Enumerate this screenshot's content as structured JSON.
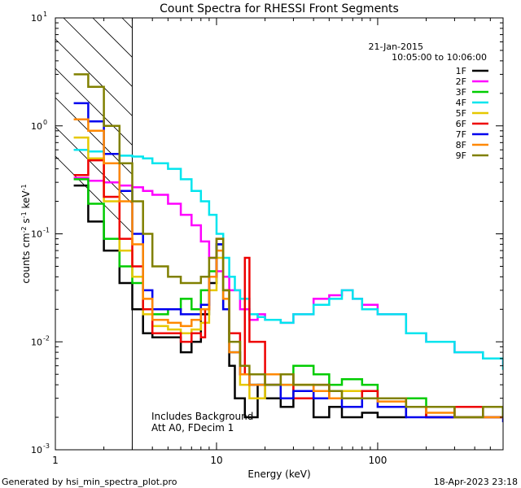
{
  "chart_data": {
    "type": "line",
    "title": "Count Spectra for RHESSI Front Segments",
    "xlabel": "Energy (keV)",
    "ylabel": "counts cm^-2 s^-1 keV^-1",
    "xscale": "log",
    "yscale": "log",
    "xlim": [
      1,
      600
    ],
    "ylim": [
      0.001,
      10
    ],
    "x_ticks": [
      {
        "value": 1,
        "label": "1"
      },
      {
        "value": 10,
        "label": "10"
      },
      {
        "value": 100,
        "label": "100"
      }
    ],
    "y_ticks": [
      {
        "value": 0.001,
        "base": "10",
        "exp": "-3"
      },
      {
        "value": 0.01,
        "base": "10",
        "exp": "-2"
      },
      {
        "value": 0.1,
        "base": "10",
        "exp": "-1"
      },
      {
        "value": 1,
        "base": "10",
        "exp": "0"
      },
      {
        "value": 10,
        "base": "10",
        "exp": "1"
      }
    ],
    "shaded_region": {
      "x_from": 1,
      "x_to": 3,
      "pattern": "diagonal hatch"
    },
    "date": "21-Jan-2015",
    "time_range": "10:05:00 to 10:06:00",
    "annotations": [
      "Includes Background",
      "Att A0, FDecim 1"
    ],
    "footer_left": "Generated by hsi_min_spectra_plot.pro",
    "footer_right": "18-Apr-2023 23:18",
    "series": [
      {
        "name": "1F",
        "color": "#000000",
        "points": [
          [
            1.3,
            0.28
          ],
          [
            1.6,
            0.13
          ],
          [
            2.0,
            0.07
          ],
          [
            2.5,
            0.035
          ],
          [
            3.0,
            0.02
          ],
          [
            3.5,
            0.012
          ],
          [
            4.0,
            0.011
          ],
          [
            5.0,
            0.011
          ],
          [
            6.0,
            0.008
          ],
          [
            7.0,
            0.01
          ],
          [
            8.0,
            0.018
          ],
          [
            9.0,
            0.035
          ],
          [
            10.0,
            0.08
          ],
          [
            11.0,
            0.02
          ],
          [
            12.0,
            0.006
          ],
          [
            13.0,
            0.003
          ],
          [
            15.0,
            0.002
          ],
          [
            18.0,
            0.004
          ],
          [
            20.0,
            0.003
          ],
          [
            25.0,
            0.0025
          ],
          [
            30.0,
            0.003
          ],
          [
            40.0,
            0.002
          ],
          [
            50.0,
            0.0025
          ],
          [
            60.0,
            0.002
          ],
          [
            80.0,
            0.0022
          ],
          [
            100.0,
            0.002
          ],
          [
            150.0,
            0.0025
          ],
          [
            200.0,
            0.002
          ],
          [
            300.0,
            0.002
          ],
          [
            450.0,
            0.0025
          ],
          [
            600.0,
            0.002
          ]
        ]
      },
      {
        "name": "2F",
        "color": "#ff00ff",
        "points": [
          [
            1.3,
            0.33
          ],
          [
            1.6,
            0.31
          ],
          [
            2.0,
            0.3
          ],
          [
            2.5,
            0.28
          ],
          [
            3.0,
            0.27
          ],
          [
            3.5,
            0.25
          ],
          [
            4.0,
            0.23
          ],
          [
            5.0,
            0.19
          ],
          [
            6.0,
            0.15
          ],
          [
            7.0,
            0.12
          ],
          [
            8.0,
            0.085
          ],
          [
            9.0,
            0.06
          ],
          [
            10.0,
            0.045
          ],
          [
            11.0,
            0.04
          ],
          [
            12.0,
            0.03
          ],
          [
            14.0,
            0.02
          ],
          [
            16.0,
            0.016
          ],
          [
            18.0,
            0.018
          ],
          [
            20.0,
            0.016
          ],
          [
            25.0,
            0.015
          ],
          [
            30.0,
            0.018
          ],
          [
            40.0,
            0.025
          ],
          [
            50.0,
            0.027
          ],
          [
            60.0,
            0.03
          ],
          [
            70.0,
            0.025
          ],
          [
            80.0,
            0.022
          ],
          [
            100.0,
            0.018
          ],
          [
            150.0,
            0.012
          ],
          [
            200.0,
            0.01
          ],
          [
            300.0,
            0.008
          ],
          [
            450.0,
            0.007
          ],
          [
            600.0,
            0.006
          ]
        ]
      },
      {
        "name": "3F",
        "color": "#00cc00",
        "points": [
          [
            1.3,
            0.32
          ],
          [
            1.6,
            0.19
          ],
          [
            2.0,
            0.09
          ],
          [
            2.5,
            0.05
          ],
          [
            3.0,
            0.035
          ],
          [
            3.5,
            0.02
          ],
          [
            4.0,
            0.018
          ],
          [
            5.0,
            0.02
          ],
          [
            6.0,
            0.025
          ],
          [
            7.0,
            0.02
          ],
          [
            8.0,
            0.03
          ],
          [
            9.0,
            0.045
          ],
          [
            10.0,
            0.08
          ],
          [
            11.0,
            0.02
          ],
          [
            12.0,
            0.008
          ],
          [
            14.0,
            0.005
          ],
          [
            16.0,
            0.004
          ],
          [
            20.0,
            0.005
          ],
          [
            25.0,
            0.004
          ],
          [
            30.0,
            0.006
          ],
          [
            40.0,
            0.005
          ],
          [
            50.0,
            0.004
          ],
          [
            60.0,
            0.0045
          ],
          [
            80.0,
            0.004
          ],
          [
            100.0,
            0.003
          ],
          [
            150.0,
            0.003
          ],
          [
            200.0,
            0.0025
          ],
          [
            300.0,
            0.0025
          ],
          [
            450.0,
            0.0025
          ],
          [
            600.0,
            0.002
          ]
        ]
      },
      {
        "name": "4F",
        "color": "#00e5ee",
        "points": [
          [
            1.3,
            0.6
          ],
          [
            1.6,
            0.58
          ],
          [
            2.0,
            0.55
          ],
          [
            2.5,
            0.53
          ],
          [
            3.0,
            0.52
          ],
          [
            3.5,
            0.5
          ],
          [
            4.0,
            0.45
          ],
          [
            5.0,
            0.4
          ],
          [
            6.0,
            0.32
          ],
          [
            7.0,
            0.25
          ],
          [
            8.0,
            0.2
          ],
          [
            9.0,
            0.15
          ],
          [
            10.0,
            0.1
          ],
          [
            11.0,
            0.06
          ],
          [
            12.0,
            0.04
          ],
          [
            13.0,
            0.03
          ],
          [
            14.0,
            0.025
          ],
          [
            16.0,
            0.018
          ],
          [
            18.0,
            0.017
          ],
          [
            20.0,
            0.016
          ],
          [
            25.0,
            0.015
          ],
          [
            30.0,
            0.018
          ],
          [
            40.0,
            0.022
          ],
          [
            50.0,
            0.025
          ],
          [
            60.0,
            0.03
          ],
          [
            70.0,
            0.025
          ],
          [
            80.0,
            0.02
          ],
          [
            100.0,
            0.018
          ],
          [
            150.0,
            0.012
          ],
          [
            200.0,
            0.01
          ],
          [
            300.0,
            0.008
          ],
          [
            450.0,
            0.007
          ],
          [
            600.0,
            0.0055
          ]
        ]
      },
      {
        "name": "5F",
        "color": "#e6c800",
        "points": [
          [
            1.3,
            0.78
          ],
          [
            1.6,
            0.5
          ],
          [
            2.0,
            0.2
          ],
          [
            2.5,
            0.07
          ],
          [
            3.0,
            0.04
          ],
          [
            3.5,
            0.018
          ],
          [
            4.0,
            0.014
          ],
          [
            5.0,
            0.013
          ],
          [
            6.0,
            0.012
          ],
          [
            7.0,
            0.013
          ],
          [
            8.0,
            0.015
          ],
          [
            9.0,
            0.03
          ],
          [
            10.0,
            0.06
          ],
          [
            11.0,
            0.03
          ],
          [
            12.0,
            0.01
          ],
          [
            14.0,
            0.004
          ],
          [
            16.0,
            0.003
          ],
          [
            20.0,
            0.004
          ],
          [
            25.0,
            0.003
          ],
          [
            30.0,
            0.004
          ],
          [
            40.0,
            0.003
          ],
          [
            50.0,
            0.003
          ],
          [
            60.0,
            0.0035
          ],
          [
            80.0,
            0.003
          ],
          [
            100.0,
            0.003
          ],
          [
            150.0,
            0.0025
          ],
          [
            200.0,
            0.0025
          ],
          [
            300.0,
            0.002
          ],
          [
            450.0,
            0.002
          ],
          [
            600.0,
            0.002
          ]
        ]
      },
      {
        "name": "6F",
        "color": "#ee0000",
        "points": [
          [
            1.3,
            0.35
          ],
          [
            1.6,
            0.48
          ],
          [
            2.0,
            0.22
          ],
          [
            2.5,
            0.09
          ],
          [
            3.0,
            0.05
          ],
          [
            3.5,
            0.02
          ],
          [
            4.0,
            0.012
          ],
          [
            5.0,
            0.012
          ],
          [
            6.0,
            0.01
          ],
          [
            7.0,
            0.012
          ],
          [
            8.0,
            0.011
          ],
          [
            8.5,
            0.02
          ],
          [
            9.0,
            0.04
          ],
          [
            10.0,
            0.09
          ],
          [
            11.0,
            0.03
          ],
          [
            12.0,
            0.012
          ],
          [
            14.0,
            0.005
          ],
          [
            15.0,
            0.06
          ],
          [
            16.0,
            0.01
          ],
          [
            20.0,
            0.004
          ],
          [
            25.0,
            0.005
          ],
          [
            30.0,
            0.003
          ],
          [
            40.0,
            0.004
          ],
          [
            50.0,
            0.003
          ],
          [
            60.0,
            0.003
          ],
          [
            80.0,
            0.0035
          ],
          [
            100.0,
            0.003
          ],
          [
            150.0,
            0.0025
          ],
          [
            200.0,
            0.002
          ],
          [
            300.0,
            0.0025
          ],
          [
            450.0,
            0.002
          ],
          [
            600.0,
            0.002
          ]
        ]
      },
      {
        "name": "7F",
        "color": "#0000ee",
        "points": [
          [
            1.3,
            1.62
          ],
          [
            1.6,
            1.1
          ],
          [
            2.0,
            0.55
          ],
          [
            2.5,
            0.25
          ],
          [
            3.0,
            0.1
          ],
          [
            3.5,
            0.03
          ],
          [
            4.0,
            0.02
          ],
          [
            5.0,
            0.02
          ],
          [
            6.0,
            0.018
          ],
          [
            7.0,
            0.018
          ],
          [
            8.0,
            0.022
          ],
          [
            9.0,
            0.04
          ],
          [
            10.0,
            0.08
          ],
          [
            11.0,
            0.02
          ],
          [
            12.0,
            0.008
          ],
          [
            14.0,
            0.005
          ],
          [
            16.0,
            0.004
          ],
          [
            20.0,
            0.004
          ],
          [
            25.0,
            0.003
          ],
          [
            30.0,
            0.0035
          ],
          [
            40.0,
            0.003
          ],
          [
            50.0,
            0.003
          ],
          [
            60.0,
            0.0025
          ],
          [
            80.0,
            0.003
          ],
          [
            100.0,
            0.0025
          ],
          [
            150.0,
            0.002
          ],
          [
            200.0,
            0.002
          ],
          [
            300.0,
            0.002
          ],
          [
            450.0,
            0.002
          ],
          [
            600.0,
            0.0018
          ]
        ]
      },
      {
        "name": "8F",
        "color": "#ff8800",
        "points": [
          [
            1.3,
            1.15
          ],
          [
            1.6,
            0.9
          ],
          [
            2.0,
            0.45
          ],
          [
            2.5,
            0.2
          ],
          [
            3.0,
            0.08
          ],
          [
            3.5,
            0.025
          ],
          [
            4.0,
            0.016
          ],
          [
            5.0,
            0.015
          ],
          [
            6.0,
            0.014
          ],
          [
            7.0,
            0.016
          ],
          [
            8.0,
            0.02
          ],
          [
            9.0,
            0.04
          ],
          [
            10.0,
            0.07
          ],
          [
            11.0,
            0.025
          ],
          [
            12.0,
            0.008
          ],
          [
            14.0,
            0.005
          ],
          [
            16.0,
            0.004
          ],
          [
            20.0,
            0.005
          ],
          [
            25.0,
            0.004
          ],
          [
            30.0,
            0.004
          ],
          [
            40.0,
            0.0035
          ],
          [
            50.0,
            0.003
          ],
          [
            60.0,
            0.003
          ],
          [
            80.0,
            0.003
          ],
          [
            100.0,
            0.0028
          ],
          [
            150.0,
            0.0025
          ],
          [
            200.0,
            0.0022
          ],
          [
            300.0,
            0.002
          ],
          [
            450.0,
            0.002
          ],
          [
            600.0,
            0.002
          ]
        ]
      },
      {
        "name": "9F",
        "color": "#808000",
        "points": [
          [
            1.3,
            3.0
          ],
          [
            1.6,
            2.3
          ],
          [
            2.0,
            1.0
          ],
          [
            2.5,
            0.45
          ],
          [
            3.0,
            0.2
          ],
          [
            3.5,
            0.1
          ],
          [
            4.0,
            0.05
          ],
          [
            5.0,
            0.04
          ],
          [
            6.0,
            0.035
          ],
          [
            7.0,
            0.035
          ],
          [
            8.0,
            0.04
          ],
          [
            9.0,
            0.06
          ],
          [
            10.0,
            0.09
          ],
          [
            11.0,
            0.03
          ],
          [
            12.0,
            0.01
          ],
          [
            14.0,
            0.006
          ],
          [
            16.0,
            0.005
          ],
          [
            20.0,
            0.004
          ],
          [
            25.0,
            0.005
          ],
          [
            30.0,
            0.004
          ],
          [
            40.0,
            0.004
          ],
          [
            50.0,
            0.0035
          ],
          [
            60.0,
            0.003
          ],
          [
            80.0,
            0.003
          ],
          [
            100.0,
            0.003
          ],
          [
            150.0,
            0.0025
          ],
          [
            200.0,
            0.0025
          ],
          [
            300.0,
            0.002
          ],
          [
            450.0,
            0.0025
          ],
          [
            600.0,
            0.002
          ]
        ]
      }
    ]
  }
}
